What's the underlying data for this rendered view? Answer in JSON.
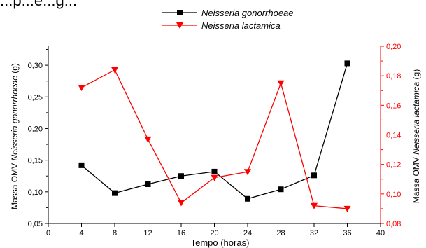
{
  "chart_data": {
    "type": "line",
    "title": "...p...e...g...",
    "xlabel": "Tempo (horas)",
    "y1label": {
      "prefix": "Massa OMV ",
      "species": "Neisseria gonorrhoeae",
      "suffix": " (g)"
    },
    "y2label": {
      "prefix": "Massa OMV ",
      "species": "Neisseria lactamica",
      "suffix": " (g)"
    },
    "xlim": [
      0,
      40
    ],
    "x_ticks": [
      "0",
      "4",
      "8",
      "12",
      "16",
      "20",
      "24",
      "28",
      "32",
      "36",
      "40"
    ],
    "y1lim": [
      0.05,
      0.33
    ],
    "y1_ticks": [
      "0,05",
      "0,10",
      "0,15",
      "0,20",
      "0,25",
      "0,30"
    ],
    "y2lim": [
      0.08,
      0.2
    ],
    "y2_ticks": [
      "0,08",
      "0,10",
      "0,12",
      "0,14",
      "0,16",
      "0,18",
      "0,20"
    ],
    "grid": false,
    "legend_position": "top-center",
    "series": [
      {
        "name": "Neisseria gonorrhoeae",
        "axis": "left",
        "color": "#000000",
        "marker": "square",
        "x": [
          4,
          8,
          12,
          16,
          20,
          24,
          28,
          32,
          36
        ],
        "y": [
          0.142,
          0.098,
          0.112,
          0.125,
          0.132,
          0.089,
          0.104,
          0.126,
          0.303
        ]
      },
      {
        "name": "Neisseria lactamica",
        "axis": "right",
        "color": "#ff0000",
        "marker": "triangle-down",
        "x": [
          4,
          8,
          12,
          16,
          20,
          24,
          28,
          32,
          36
        ],
        "y": [
          0.172,
          0.184,
          0.137,
          0.094,
          0.111,
          0.115,
          0.175,
          0.092,
          0.09
        ]
      }
    ]
  }
}
